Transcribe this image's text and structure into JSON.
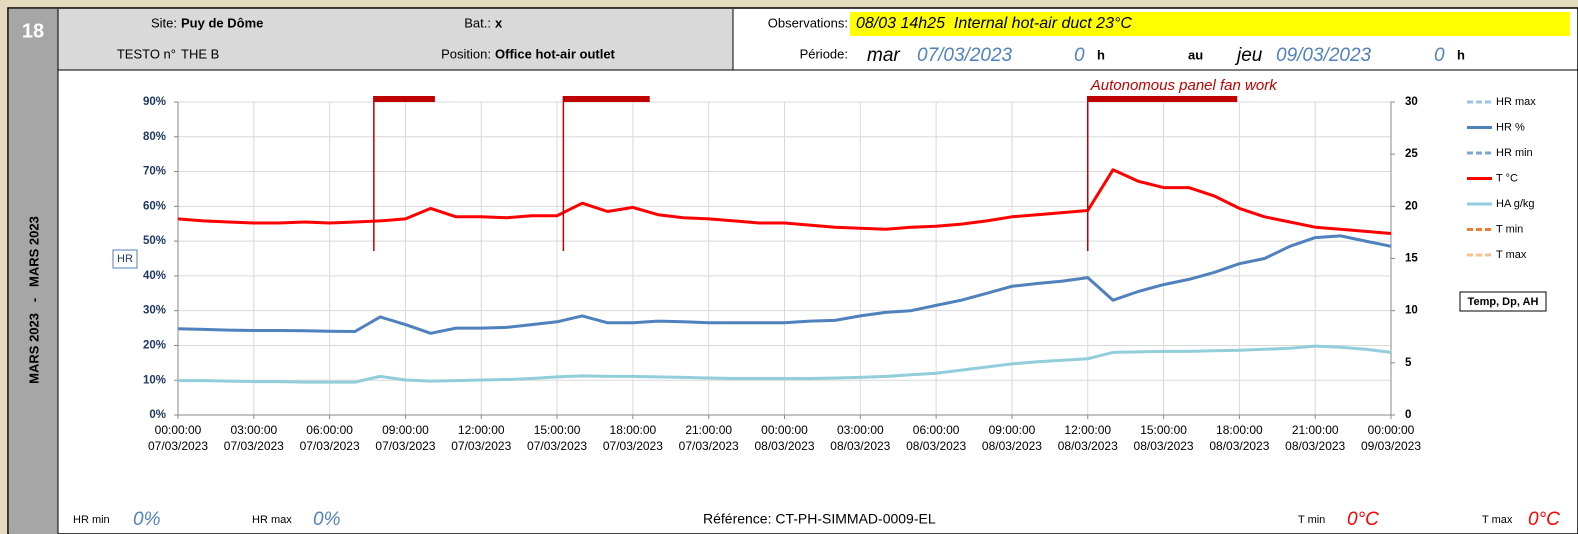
{
  "page_number": "18",
  "side_label": "MARS 2023   -   MARS 2023",
  "header": {
    "site_label": "Site:",
    "site": "Puy de Dôme",
    "bat_label": "Bat.:",
    "bat": "x",
    "testo_label": "TESTO n°",
    "testo": "THE B",
    "position_label": "Position:",
    "position": "Office hot-air outlet",
    "observations_label": "Observations:",
    "observations": "08/03 14h25  Internal hot-air duct 23°C",
    "period_label": "Période:",
    "start_day": "mar",
    "start_date": "07/03/2023",
    "start_hour": "0",
    "start_unit": "h",
    "to": "au",
    "end_day": "jeu",
    "end_date": "09/03/2023",
    "end_hour": "0",
    "end_unit": "h"
  },
  "footer": {
    "hr_min_label": "HR min",
    "hr_min": "0%",
    "hr_max_label": "HR max",
    "hr_max": "0%",
    "reference": "Référence: CT-PH-SIMMAD-0009-EL",
    "t_min_label": "T min",
    "t_min": "0°C",
    "t_max_label": "T max",
    "t_max": "0°C"
  },
  "chart_data": {
    "type": "line",
    "ylabel": "HR",
    "y2label": "Temp, Dp, AH",
    "grid": true,
    "legend": "right",
    "x": [
      "2023-03-07T00:00",
      "2023-03-07T01:00",
      "2023-03-07T02:00",
      "2023-03-07T03:00",
      "2023-03-07T04:00",
      "2023-03-07T05:00",
      "2023-03-07T06:00",
      "2023-03-07T07:00",
      "2023-03-07T08:00",
      "2023-03-07T09:00",
      "2023-03-07T10:00",
      "2023-03-07T11:00",
      "2023-03-07T12:00",
      "2023-03-07T13:00",
      "2023-03-07T14:00",
      "2023-03-07T15:00",
      "2023-03-07T16:00",
      "2023-03-07T17:00",
      "2023-03-07T18:00",
      "2023-03-07T19:00",
      "2023-03-07T20:00",
      "2023-03-07T21:00",
      "2023-03-07T22:00",
      "2023-03-07T23:00",
      "2023-03-08T00:00",
      "2023-03-08T01:00",
      "2023-03-08T02:00",
      "2023-03-08T03:00",
      "2023-03-08T04:00",
      "2023-03-08T05:00",
      "2023-03-08T06:00",
      "2023-03-08T07:00",
      "2023-03-08T08:00",
      "2023-03-08T09:00",
      "2023-03-08T10:00",
      "2023-03-08T11:00",
      "2023-03-08T12:00",
      "2023-03-08T13:00",
      "2023-03-08T14:00",
      "2023-03-08T15:00",
      "2023-03-08T16:00",
      "2023-03-08T17:00",
      "2023-03-08T18:00",
      "2023-03-08T19:00",
      "2023-03-08T20:00",
      "2023-03-08T21:00",
      "2023-03-08T22:00",
      "2023-03-08T23:00",
      "2023-03-09T00:00"
    ],
    "xlim": [
      "2023-03-07T00:00",
      "2023-03-09T00:00"
    ],
    "xticks": [
      {
        "value": "2023-03-07T00:00",
        "label": [
          "00:00:00",
          "07/03/2023"
        ]
      },
      {
        "value": "2023-03-07T03:00",
        "label": [
          "03:00:00",
          "07/03/2023"
        ]
      },
      {
        "value": "2023-03-07T06:00",
        "label": [
          "06:00:00",
          "07/03/2023"
        ]
      },
      {
        "value": "2023-03-07T09:00",
        "label": [
          "09:00:00",
          "07/03/2023"
        ]
      },
      {
        "value": "2023-03-07T12:00",
        "label": [
          "12:00:00",
          "07/03/2023"
        ]
      },
      {
        "value": "2023-03-07T15:00",
        "label": [
          "15:00:00",
          "07/03/2023"
        ]
      },
      {
        "value": "2023-03-07T18:00",
        "label": [
          "18:00:00",
          "07/03/2023"
        ]
      },
      {
        "value": "2023-03-07T21:00",
        "label": [
          "21:00:00",
          "07/03/2023"
        ]
      },
      {
        "value": "2023-03-08T00:00",
        "label": [
          "00:00:00",
          "08/03/2023"
        ]
      },
      {
        "value": "2023-03-08T03:00",
        "label": [
          "03:00:00",
          "08/03/2023"
        ]
      },
      {
        "value": "2023-03-08T06:00",
        "label": [
          "06:00:00",
          "08/03/2023"
        ]
      },
      {
        "value": "2023-03-08T09:00",
        "label": [
          "09:00:00",
          "08/03/2023"
        ]
      },
      {
        "value": "2023-03-08T12:00",
        "label": [
          "12:00:00",
          "08/03/2023"
        ]
      },
      {
        "value": "2023-03-08T15:00",
        "label": [
          "15:00:00",
          "08/03/2023"
        ]
      },
      {
        "value": "2023-03-08T18:00",
        "label": [
          "18:00:00",
          "08/03/2023"
        ]
      },
      {
        "value": "2023-03-08T21:00",
        "label": [
          "21:00:00",
          "08/03/2023"
        ]
      },
      {
        "value": "2023-03-09T00:00",
        "label": [
          "00:00:00",
          "09/03/2023"
        ]
      }
    ],
    "ylim": [
      0,
      90
    ],
    "yticks": [
      {
        "value": 0,
        "label": "0%"
      },
      {
        "value": 10,
        "label": "10%"
      },
      {
        "value": 20,
        "label": "20%"
      },
      {
        "value": 30,
        "label": "30%"
      },
      {
        "value": 40,
        "label": "40%"
      },
      {
        "value": 50,
        "label": "50%"
      },
      {
        "value": 60,
        "label": "60%"
      },
      {
        "value": 70,
        "label": "70%"
      },
      {
        "value": 80,
        "label": "80%"
      },
      {
        "value": 90,
        "label": "90%"
      }
    ],
    "y2lim": [
      0,
      30
    ],
    "y2ticks": [
      0,
      5,
      10,
      15,
      20,
      25,
      30
    ],
    "series": [
      {
        "name": "HR max",
        "color": "#9dc3e6",
        "dashed": true,
        "values": [
          null,
          null,
          null,
          null,
          null,
          null,
          null,
          null,
          null,
          null,
          null,
          null,
          null,
          null,
          null,
          null,
          null,
          null,
          null,
          null,
          null,
          null,
          null,
          null,
          null,
          null,
          null,
          null,
          null,
          null,
          null,
          null,
          null,
          null,
          null,
          null,
          null,
          null,
          null,
          null,
          null,
          null,
          null,
          null,
          null,
          null,
          null,
          null,
          null
        ]
      },
      {
        "name": "HR %",
        "color": "#4f81bd",
        "values": [
          24.8,
          24.6,
          24.4,
          24.3,
          24.3,
          24.2,
          24.1,
          24.0,
          28.2,
          26.0,
          23.5,
          25.0,
          25.0,
          25.2,
          26.0,
          26.8,
          28.5,
          26.5,
          26.5,
          27.0,
          26.8,
          26.5,
          26.5,
          26.5,
          26.5,
          27.0,
          27.2,
          28.5,
          29.5,
          30.0,
          31.5,
          33.0,
          35.0,
          37.0,
          37.8,
          38.5,
          39.5,
          33.0,
          35.5,
          37.5,
          39.0,
          41.0,
          43.5,
          45.0,
          48.5,
          51.0,
          51.5,
          50.0,
          48.5
        ]
      },
      {
        "name": "HR min",
        "color": "#7ea6d6",
        "dashed": true,
        "values": [
          null,
          null,
          null,
          null,
          null,
          null,
          null,
          null,
          null,
          null,
          null,
          null,
          null,
          null,
          null,
          null,
          null,
          null,
          null,
          null,
          null,
          null,
          null,
          null,
          null,
          null,
          null,
          null,
          null,
          null,
          null,
          null,
          null,
          null,
          null,
          null,
          null,
          null,
          null,
          null,
          null,
          null,
          null,
          null,
          null,
          null,
          null,
          null,
          null
        ]
      },
      {
        "name": "T °C",
        "color": "#ff0000",
        "axis": "y2",
        "values": [
          18.8,
          18.6,
          18.5,
          18.4,
          18.4,
          18.5,
          18.4,
          18.5,
          18.6,
          18.8,
          19.8,
          19.0,
          19.0,
          18.9,
          19.1,
          19.1,
          20.3,
          19.5,
          19.9,
          19.2,
          18.9,
          18.8,
          18.6,
          18.4,
          18.4,
          18.2,
          18.0,
          17.9,
          17.8,
          18.0,
          18.1,
          18.3,
          18.6,
          19.0,
          19.2,
          19.4,
          19.6,
          23.5,
          22.4,
          21.8,
          21.8,
          21.0,
          19.8,
          19.0,
          18.5,
          18.0,
          17.8,
          17.6,
          17.4
        ]
      },
      {
        "name": "HA g/kg",
        "color": "#92cddc",
        "axis": "y2",
        "values": [
          3.3,
          3.3,
          3.25,
          3.2,
          3.2,
          3.15,
          3.15,
          3.15,
          3.7,
          3.35,
          3.25,
          3.3,
          3.35,
          3.4,
          3.5,
          3.65,
          3.75,
          3.7,
          3.7,
          3.65,
          3.6,
          3.55,
          3.5,
          3.5,
          3.5,
          3.5,
          3.55,
          3.6,
          3.7,
          3.85,
          4.0,
          4.3,
          4.6,
          4.9,
          5.1,
          5.25,
          5.4,
          6.0,
          6.05,
          6.1,
          6.1,
          6.15,
          6.2,
          6.3,
          6.4,
          6.6,
          6.5,
          6.3,
          6.0
        ]
      },
      {
        "name": "T min",
        "color": "#ed7d31",
        "dashed": true,
        "axis": "y2",
        "values": [
          null,
          null,
          null,
          null,
          null,
          null,
          null,
          null,
          null,
          null,
          null,
          null,
          null,
          null,
          null,
          null,
          null,
          null,
          null,
          null,
          null,
          null,
          null,
          null,
          null,
          null,
          null,
          null,
          null,
          null,
          null,
          null,
          null,
          null,
          null,
          null,
          null,
          null,
          null,
          null,
          null,
          null,
          null,
          null,
          null,
          null,
          null,
          null,
          null
        ]
      },
      {
        "name": "T max",
        "color": "#fac090",
        "dashed": true,
        "axis": "y2",
        "values": [
          null,
          null,
          null,
          null,
          null,
          null,
          null,
          null,
          null,
          null,
          null,
          null,
          null,
          null,
          null,
          null,
          null,
          null,
          null,
          null,
          null,
          null,
          null,
          null,
          null,
          null,
          null,
          null,
          null,
          null,
          null,
          null,
          null,
          null,
          null,
          null,
          null,
          null,
          null,
          null,
          null,
          null,
          null,
          null,
          null,
          null,
          null,
          null,
          null
        ]
      }
    ],
    "periods": [
      {
        "start": "2023-03-07T07:45",
        "end": "2023-03-07T10:10",
        "color": "#c00000"
      },
      {
        "start": "2023-03-07T15:15",
        "end": "2023-03-07T18:40",
        "color": "#c00000"
      },
      {
        "start": "2023-03-08T12:00",
        "end": "2023-03-08T17:55",
        "color": "#c00000",
        "label": "Autonomous panel fan work"
      }
    ]
  }
}
